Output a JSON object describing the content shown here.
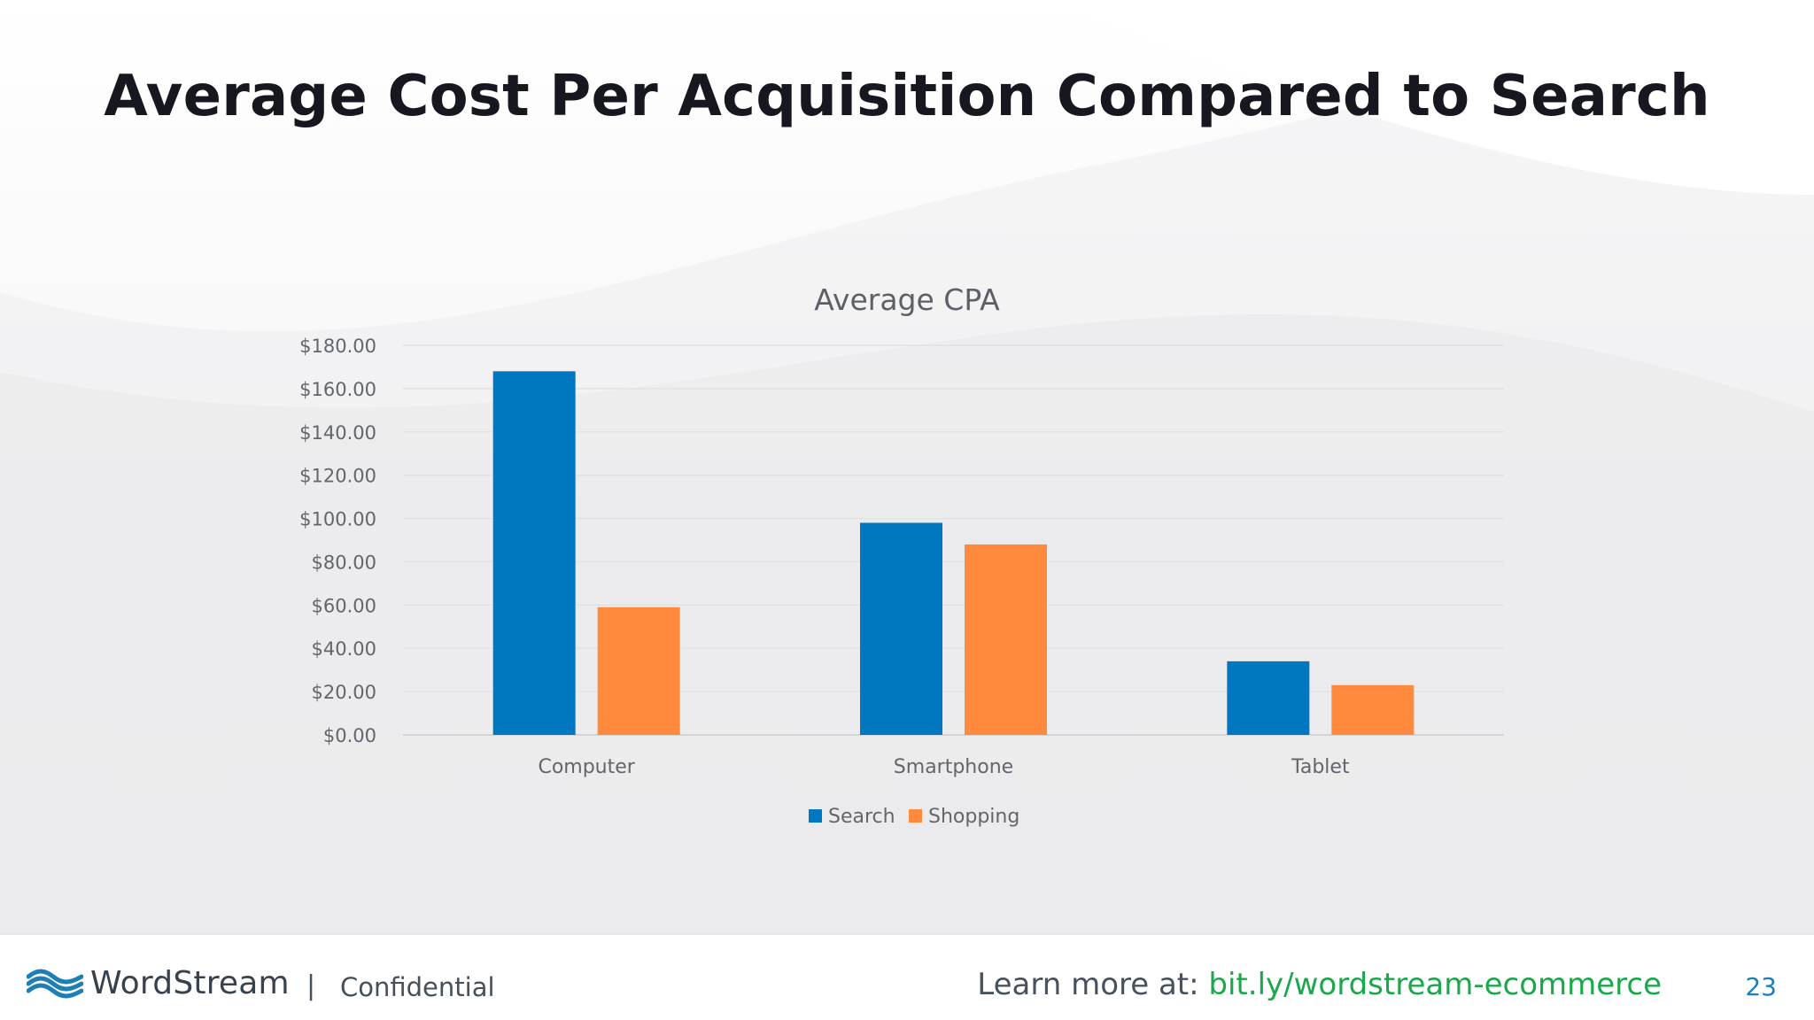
{
  "slide": {
    "title": "Average Cost Per Acquisition Compared to Search",
    "page_number": "23"
  },
  "chart_data": {
    "type": "bar",
    "title": "Average CPA",
    "categories": [
      "Computer",
      "Smartphone",
      "Tablet"
    ],
    "series": [
      {
        "name": "Search",
        "values": [
          168,
          98,
          34
        ],
        "color": "#0078c1"
      },
      {
        "name": "Shopping",
        "values": [
          59,
          88,
          23
        ],
        "color": "#ff8a3d"
      }
    ],
    "ylim": [
      0,
      180
    ],
    "yticks": [
      "$0.00",
      "$20.00",
      "$40.00",
      "$60.00",
      "$80.00",
      "$100.00",
      "$120.00",
      "$140.00",
      "$160.00",
      "$180.00"
    ],
    "grid": true,
    "legend_position": "bottom",
    "xlabel": "",
    "ylabel": ""
  },
  "footer": {
    "brand": "WordStream",
    "separator": "|",
    "confidential": "Confidential",
    "learn_more_label": "Learn more at: ",
    "learn_more_url": "bit.ly/wordstream-ecommerce",
    "brand_color": "#1d7fb5",
    "link_color": "#1ba84a"
  },
  "icons": {
    "logo": "wordstream-wave-icon"
  }
}
